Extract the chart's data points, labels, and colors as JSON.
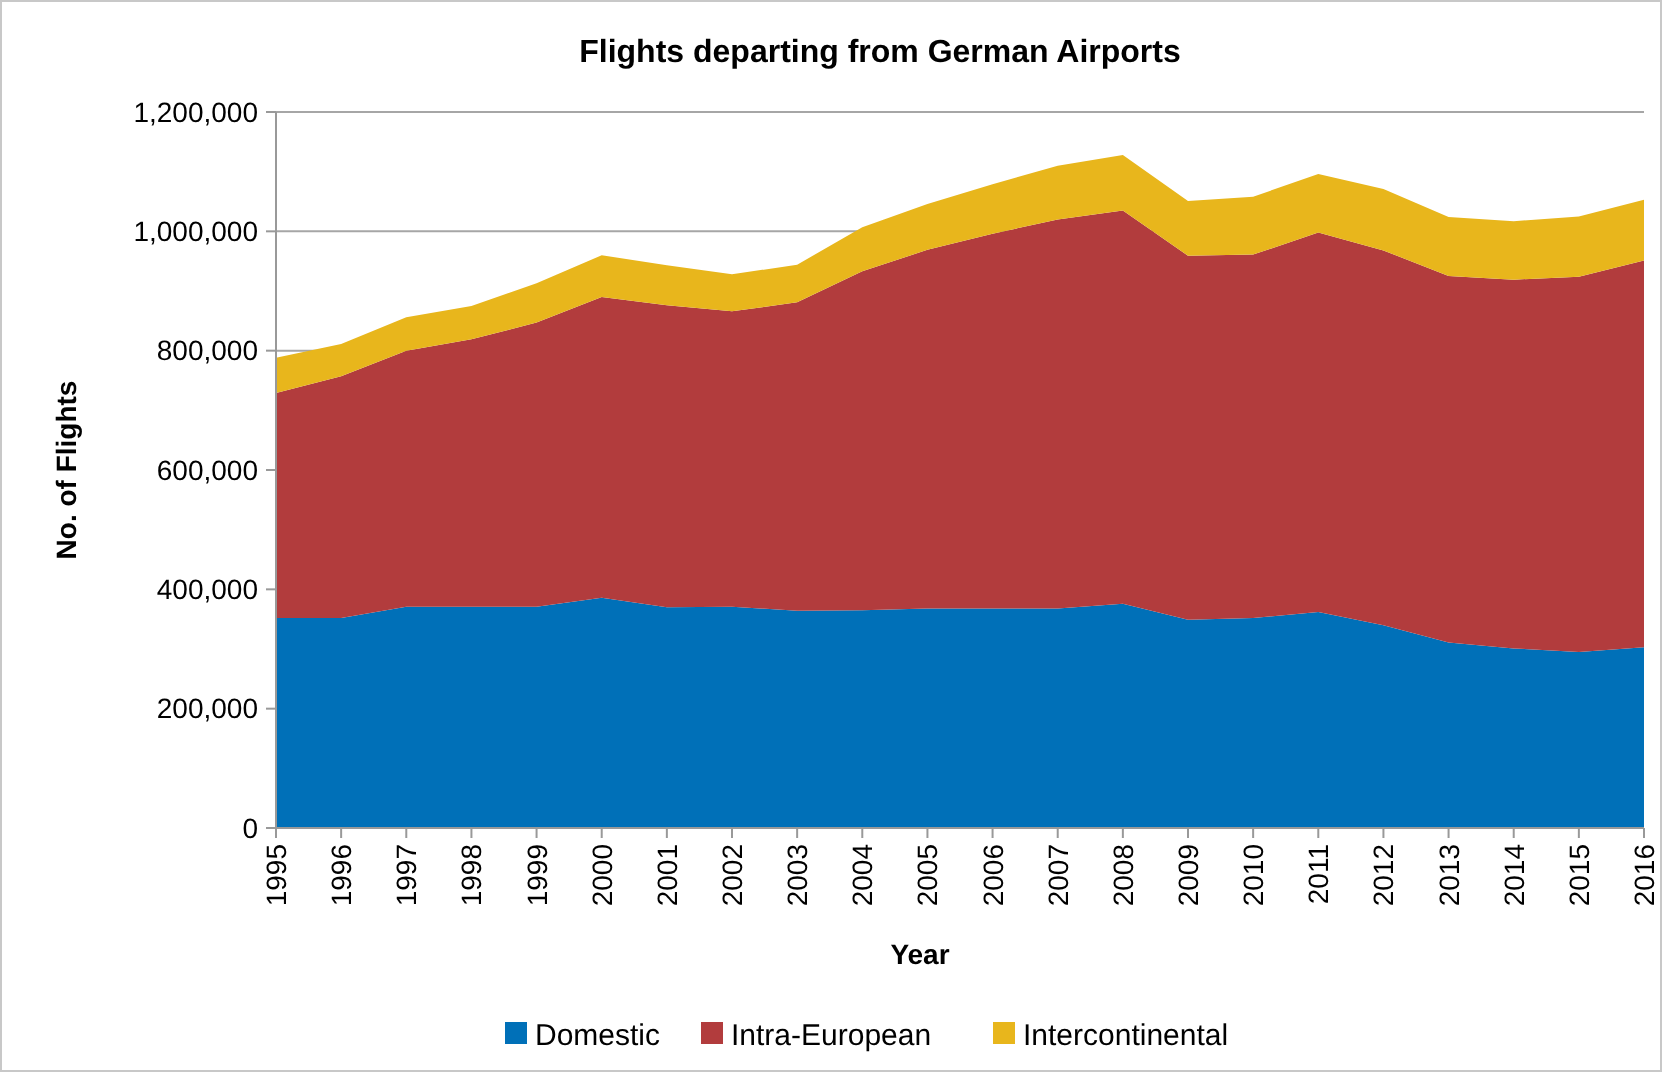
{
  "chart_data": {
    "type": "area",
    "title": "Flights departing from German Airports",
    "xlabel": "Year",
    "ylabel": "No. of Flights",
    "categories": [
      "1995",
      "1996",
      "1997",
      "1998",
      "1999",
      "2000",
      "2001",
      "2002",
      "2003",
      "2004",
      "2005",
      "2006",
      "2007",
      "2008",
      "2009",
      "2010",
      "2011",
      "2012",
      "2013",
      "2014",
      "2015",
      "2016"
    ],
    "stacked": true,
    "series": [
      {
        "name": "Domestic",
        "color": "#0070b8",
        "values": [
          352000,
          352000,
          371000,
          371000,
          371000,
          386000,
          370000,
          371000,
          364000,
          365000,
          368000,
          368000,
          368000,
          376000,
          349000,
          352000,
          362000,
          340000,
          311000,
          301000,
          295000,
          303000
        ]
      },
      {
        "name": "Intra-European",
        "color": "#b23c3d",
        "values": [
          377000,
          405000,
          429000,
          448000,
          476000,
          504000,
          506000,
          495000,
          517000,
          568000,
          601000,
          628000,
          652000,
          659000,
          610000,
          609000,
          636000,
          628000,
          614000,
          618000,
          629000,
          648000
        ]
      },
      {
        "name": "Intercontinental",
        "color": "#e8b61c",
        "values": [
          59000,
          54000,
          56000,
          56000,
          66000,
          70000,
          67000,
          62000,
          63000,
          74000,
          77000,
          83000,
          90000,
          93000,
          92000,
          97000,
          98000,
          103000,
          99000,
          98000,
          101000,
          102000
        ]
      }
    ],
    "ylim": [
      0,
      1200000
    ],
    "yticks": [
      {
        "value": 0,
        "label": "0"
      },
      {
        "value": 200000,
        "label": "200,000"
      },
      {
        "value": 400000,
        "label": "400,000"
      },
      {
        "value": 600000,
        "label": "600,000"
      },
      {
        "value": 800000,
        "label": "800,000"
      },
      {
        "value": 1000000,
        "label": "1,000,000"
      },
      {
        "value": 1200000,
        "label": "1,200,000"
      }
    ],
    "grid": "y",
    "legend": "bottom"
  }
}
